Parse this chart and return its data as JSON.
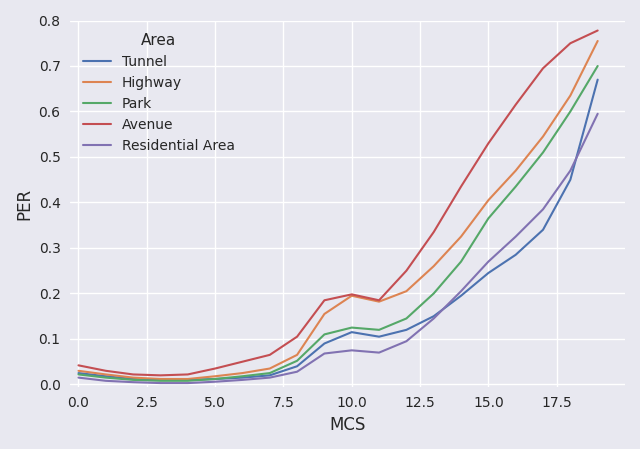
{
  "title": "",
  "xlabel": "MCS",
  "ylabel": "PER",
  "xlim": [
    -0.3,
    20.0
  ],
  "ylim": [
    -0.005,
    0.8
  ],
  "legend_title": "Area",
  "series": [
    {
      "label": "Tunnel",
      "color": "#4c72b0",
      "x": [
        0,
        1,
        2,
        3,
        4,
        5,
        6,
        7,
        8,
        9,
        10,
        11,
        12,
        13,
        14,
        15,
        16,
        17,
        18,
        19
      ],
      "y": [
        0.025,
        0.018,
        0.012,
        0.01,
        0.01,
        0.012,
        0.015,
        0.02,
        0.04,
        0.09,
        0.115,
        0.105,
        0.12,
        0.15,
        0.195,
        0.245,
        0.285,
        0.34,
        0.45,
        0.67
      ]
    },
    {
      "label": "Highway",
      "color": "#dd8452",
      "x": [
        0,
        1,
        2,
        3,
        4,
        5,
        6,
        7,
        8,
        9,
        10,
        11,
        12,
        13,
        14,
        15,
        16,
        17,
        18,
        19
      ],
      "y": [
        0.03,
        0.022,
        0.015,
        0.012,
        0.012,
        0.018,
        0.025,
        0.035,
        0.065,
        0.155,
        0.195,
        0.182,
        0.205,
        0.26,
        0.325,
        0.405,
        0.47,
        0.545,
        0.635,
        0.755
      ]
    },
    {
      "label": "Park",
      "color": "#55a868",
      "x": [
        0,
        1,
        2,
        3,
        4,
        5,
        6,
        7,
        8,
        9,
        10,
        11,
        12,
        13,
        14,
        15,
        16,
        17,
        18,
        19
      ],
      "y": [
        0.022,
        0.015,
        0.01,
        0.008,
        0.008,
        0.012,
        0.018,
        0.025,
        0.052,
        0.11,
        0.125,
        0.12,
        0.145,
        0.2,
        0.27,
        0.365,
        0.435,
        0.51,
        0.6,
        0.7
      ]
    },
    {
      "label": "Avenue",
      "color": "#c44e52",
      "x": [
        0,
        1,
        2,
        3,
        4,
        5,
        6,
        7,
        8,
        9,
        10,
        11,
        12,
        13,
        14,
        15,
        16,
        17,
        18,
        19
      ],
      "y": [
        0.042,
        0.03,
        0.022,
        0.02,
        0.022,
        0.035,
        0.05,
        0.065,
        0.105,
        0.185,
        0.198,
        0.185,
        0.25,
        0.335,
        0.435,
        0.53,
        0.615,
        0.695,
        0.75,
        0.778
      ]
    },
    {
      "label": "Residential Area",
      "color": "#8172b2",
      "x": [
        0,
        1,
        2,
        3,
        4,
        5,
        6,
        7,
        8,
        9,
        10,
        11,
        12,
        13,
        14,
        15,
        16,
        17,
        18,
        19
      ],
      "y": [
        0.015,
        0.008,
        0.005,
        0.003,
        0.003,
        0.006,
        0.01,
        0.015,
        0.028,
        0.068,
        0.075,
        0.07,
        0.095,
        0.145,
        0.205,
        0.27,
        0.325,
        0.385,
        0.47,
        0.595
      ]
    }
  ],
  "background_color": "#e8e8f0",
  "grid_color": "#ffffff",
  "xticks": [
    0.0,
    2.5,
    5.0,
    7.5,
    10.0,
    12.5,
    15.0,
    17.5
  ],
  "yticks": [
    0.0,
    0.1,
    0.2,
    0.3,
    0.4,
    0.5,
    0.6,
    0.7,
    0.8
  ]
}
